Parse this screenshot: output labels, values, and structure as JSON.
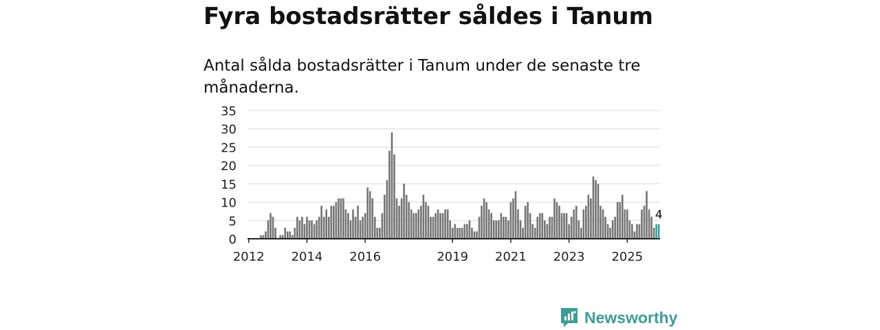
{
  "header": {
    "title": "Fyra bostadsrätter såldes i Tanum",
    "subtitle": "Antal sålda bostadsrätter i Tanum under de senaste tre månaderna."
  },
  "brand": {
    "name": "Newsworthy",
    "color": "#3a9f99"
  },
  "chart_data": {
    "type": "bar",
    "x_start": "2012-01",
    "x_ticks": [
      "2012",
      "2014",
      "2016",
      "2019",
      "2021",
      "2023",
      "2025"
    ],
    "y_ticks": [
      0,
      5,
      10,
      15,
      20,
      25,
      30,
      35
    ],
    "ylim": [
      0,
      35
    ],
    "grid": true,
    "bar_color": "#757575",
    "highlight_color": "#3aa39c",
    "highlight_last": 2,
    "last_label": "4",
    "values": [
      0,
      0,
      0,
      0,
      0,
      1,
      1,
      2,
      5,
      7,
      6,
      3,
      0,
      1,
      1,
      3,
      2,
      2,
      1,
      3,
      6,
      5,
      6,
      4,
      6,
      5,
      5,
      4,
      5,
      6,
      9,
      6,
      8,
      6,
      9,
      9,
      10,
      11,
      11,
      11,
      8,
      7,
      5,
      8,
      6,
      9,
      5,
      6,
      7,
      14,
      13,
      11,
      6,
      3,
      3,
      7,
      12,
      16,
      24,
      29,
      23,
      11,
      9,
      11,
      15,
      12,
      10,
      8,
      7,
      7,
      8,
      9,
      12,
      10,
      9,
      6,
      6,
      7,
      8,
      7,
      7,
      8,
      8,
      5,
      3,
      4,
      3,
      3,
      3,
      4,
      4,
      5,
      3,
      2,
      2,
      6,
      9,
      11,
      10,
      8,
      7,
      5,
      5,
      5,
      7,
      6,
      6,
      5,
      10,
      11,
      13,
      8,
      5,
      3,
      9,
      10,
      7,
      4,
      3,
      6,
      7,
      7,
      5,
      4,
      6,
      6,
      11,
      10,
      9,
      7,
      7,
      7,
      4,
      6,
      8,
      9,
      5,
      3,
      8,
      9,
      12,
      11,
      17,
      16,
      15,
      9,
      8,
      6,
      4,
      3,
      5,
      6,
      10,
      10,
      12,
      8,
      8,
      5,
      4,
      2,
      4,
      4,
      8,
      9,
      13,
      8,
      6,
      3,
      4,
      4
    ]
  }
}
